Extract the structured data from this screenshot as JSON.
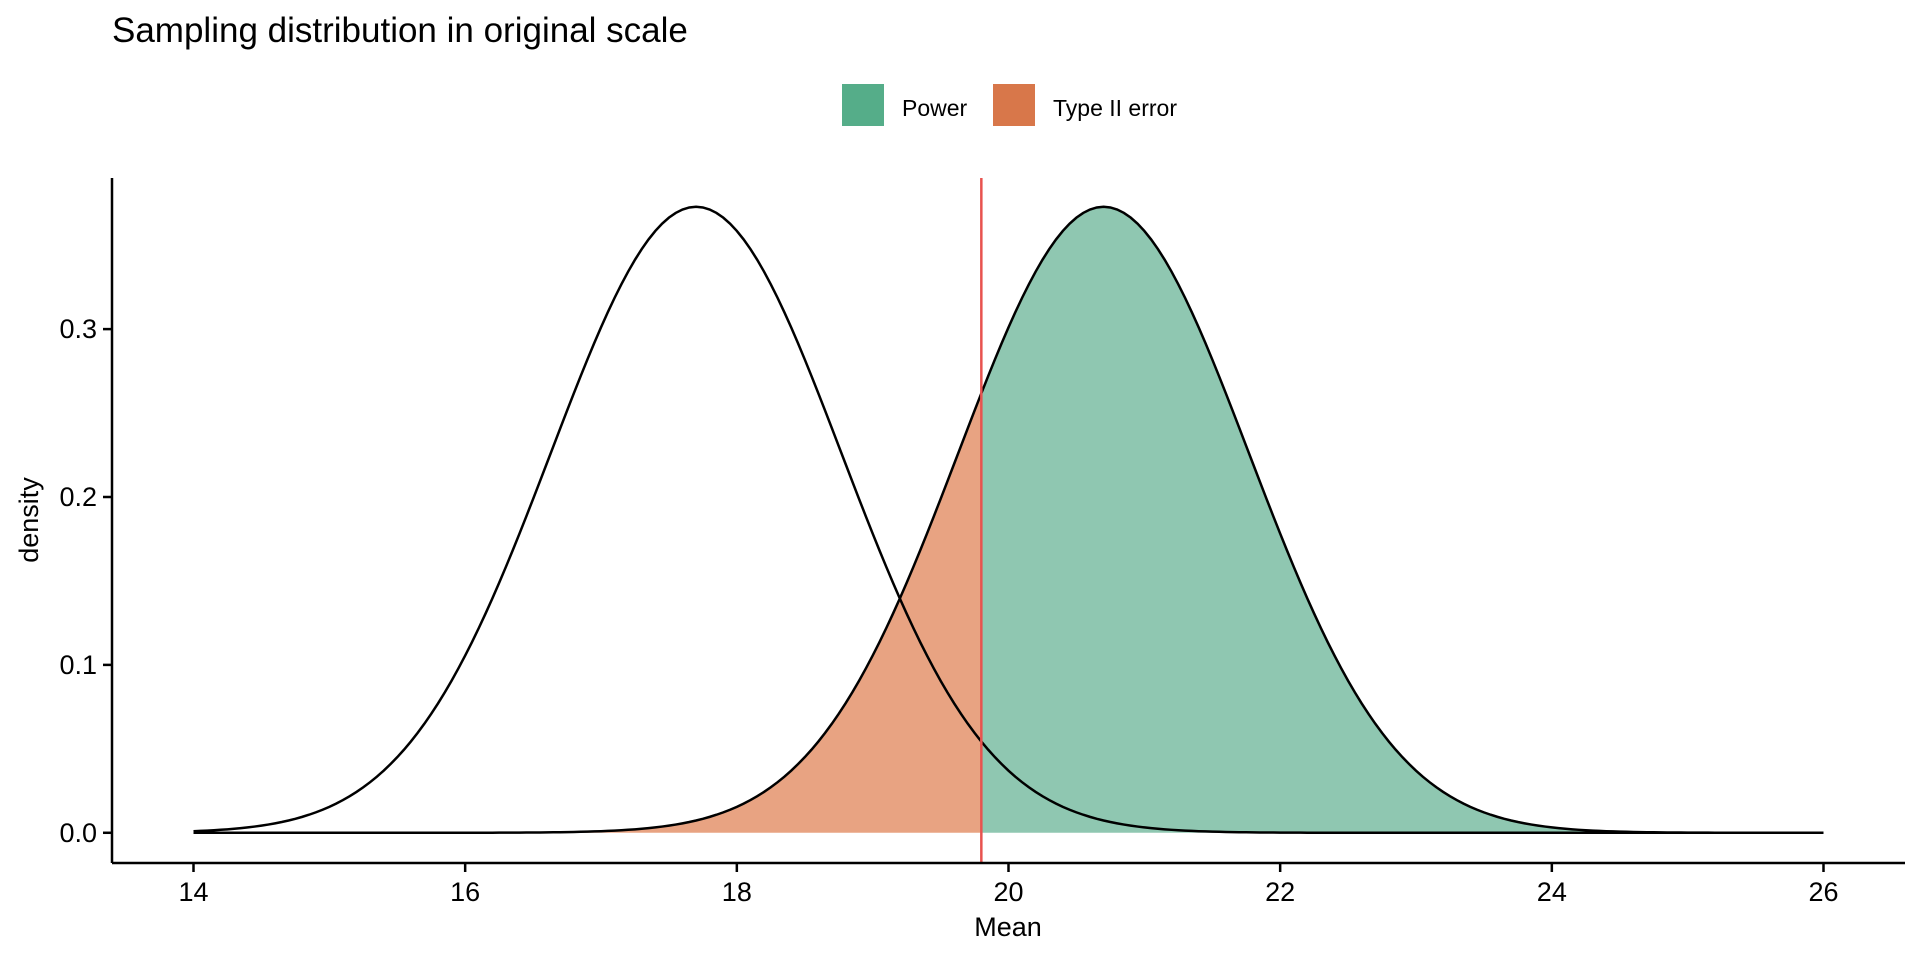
{
  "chart_data": {
    "type": "area",
    "title": "Sampling distribution in original scale",
    "xlabel": "Mean",
    "ylabel": "density",
    "xlim": [
      13.4,
      26.6
    ],
    "ylim": [
      -0.018,
      0.39
    ],
    "x_ticks": [
      14,
      16,
      18,
      20,
      22,
      24,
      26
    ],
    "y_ticks": [
      0.0,
      0.1,
      0.2,
      0.3
    ],
    "y_tick_labels": [
      "0.0",
      "0.1",
      "0.2",
      "0.3"
    ],
    "grid": false,
    "legend_position": "top",
    "legend": [
      {
        "label": "Power",
        "color": "#55AD89"
      },
      {
        "label": "Type II error",
        "color": "#D8774A"
      }
    ],
    "null_distribution": {
      "mean": 17.7,
      "sd": 1.07,
      "range": [
        14,
        26
      ],
      "line_color": "#000000"
    },
    "alternative_distribution": {
      "mean": 20.7,
      "sd": 1.07,
      "range": [
        14,
        26
      ],
      "line_color": "#000000"
    },
    "critical_value": 19.8,
    "critical_line_color": "#E8534F",
    "regions": [
      {
        "name": "Type II error",
        "from": 14,
        "to": 19.8,
        "color": "#E8A382"
      },
      {
        "name": "Power",
        "from": 19.8,
        "to": 26,
        "color": "#8FC7B1"
      }
    ]
  }
}
